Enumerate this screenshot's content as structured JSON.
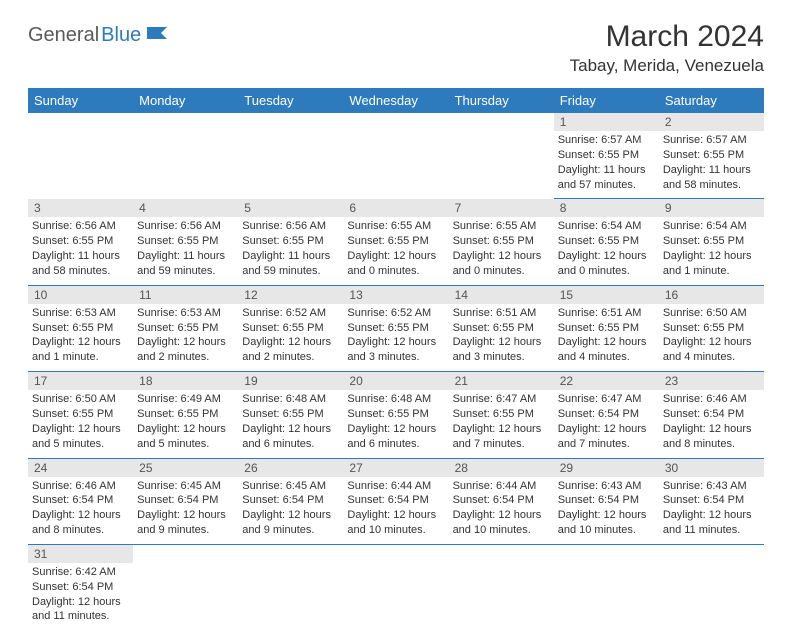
{
  "logo": {
    "part1": "General",
    "part2": "Blue",
    "icon_color": "#2d7bbd"
  },
  "title": "March 2024",
  "location": "Tabay, Merida, Venezuela",
  "colors": {
    "header_bg": "#2d7bbd",
    "header_text": "#ffffff",
    "daynum_bg": "#e7e7e7",
    "text": "#333333",
    "border": "#2d7bbd"
  },
  "day_names": [
    "Sunday",
    "Monday",
    "Tuesday",
    "Wednesday",
    "Thursday",
    "Friday",
    "Saturday"
  ],
  "weeks": [
    [
      {
        "day": "",
        "sunrise": "",
        "sunset": "",
        "daylight": ""
      },
      {
        "day": "",
        "sunrise": "",
        "sunset": "",
        "daylight": ""
      },
      {
        "day": "",
        "sunrise": "",
        "sunset": "",
        "daylight": ""
      },
      {
        "day": "",
        "sunrise": "",
        "sunset": "",
        "daylight": ""
      },
      {
        "day": "",
        "sunrise": "",
        "sunset": "",
        "daylight": ""
      },
      {
        "day": "1",
        "sunrise": "Sunrise: 6:57 AM",
        "sunset": "Sunset: 6:55 PM",
        "daylight": "Daylight: 11 hours and 57 minutes."
      },
      {
        "day": "2",
        "sunrise": "Sunrise: 6:57 AM",
        "sunset": "Sunset: 6:55 PM",
        "daylight": "Daylight: 11 hours and 58 minutes."
      }
    ],
    [
      {
        "day": "3",
        "sunrise": "Sunrise: 6:56 AM",
        "sunset": "Sunset: 6:55 PM",
        "daylight": "Daylight: 11 hours and 58 minutes."
      },
      {
        "day": "4",
        "sunrise": "Sunrise: 6:56 AM",
        "sunset": "Sunset: 6:55 PM",
        "daylight": "Daylight: 11 hours and 59 minutes."
      },
      {
        "day": "5",
        "sunrise": "Sunrise: 6:56 AM",
        "sunset": "Sunset: 6:55 PM",
        "daylight": "Daylight: 11 hours and 59 minutes."
      },
      {
        "day": "6",
        "sunrise": "Sunrise: 6:55 AM",
        "sunset": "Sunset: 6:55 PM",
        "daylight": "Daylight: 12 hours and 0 minutes."
      },
      {
        "day": "7",
        "sunrise": "Sunrise: 6:55 AM",
        "sunset": "Sunset: 6:55 PM",
        "daylight": "Daylight: 12 hours and 0 minutes."
      },
      {
        "day": "8",
        "sunrise": "Sunrise: 6:54 AM",
        "sunset": "Sunset: 6:55 PM",
        "daylight": "Daylight: 12 hours and 0 minutes."
      },
      {
        "day": "9",
        "sunrise": "Sunrise: 6:54 AM",
        "sunset": "Sunset: 6:55 PM",
        "daylight": "Daylight: 12 hours and 1 minute."
      }
    ],
    [
      {
        "day": "10",
        "sunrise": "Sunrise: 6:53 AM",
        "sunset": "Sunset: 6:55 PM",
        "daylight": "Daylight: 12 hours and 1 minute."
      },
      {
        "day": "11",
        "sunrise": "Sunrise: 6:53 AM",
        "sunset": "Sunset: 6:55 PM",
        "daylight": "Daylight: 12 hours and 2 minutes."
      },
      {
        "day": "12",
        "sunrise": "Sunrise: 6:52 AM",
        "sunset": "Sunset: 6:55 PM",
        "daylight": "Daylight: 12 hours and 2 minutes."
      },
      {
        "day": "13",
        "sunrise": "Sunrise: 6:52 AM",
        "sunset": "Sunset: 6:55 PM",
        "daylight": "Daylight: 12 hours and 3 minutes."
      },
      {
        "day": "14",
        "sunrise": "Sunrise: 6:51 AM",
        "sunset": "Sunset: 6:55 PM",
        "daylight": "Daylight: 12 hours and 3 minutes."
      },
      {
        "day": "15",
        "sunrise": "Sunrise: 6:51 AM",
        "sunset": "Sunset: 6:55 PM",
        "daylight": "Daylight: 12 hours and 4 minutes."
      },
      {
        "day": "16",
        "sunrise": "Sunrise: 6:50 AM",
        "sunset": "Sunset: 6:55 PM",
        "daylight": "Daylight: 12 hours and 4 minutes."
      }
    ],
    [
      {
        "day": "17",
        "sunrise": "Sunrise: 6:50 AM",
        "sunset": "Sunset: 6:55 PM",
        "daylight": "Daylight: 12 hours and 5 minutes."
      },
      {
        "day": "18",
        "sunrise": "Sunrise: 6:49 AM",
        "sunset": "Sunset: 6:55 PM",
        "daylight": "Daylight: 12 hours and 5 minutes."
      },
      {
        "day": "19",
        "sunrise": "Sunrise: 6:48 AM",
        "sunset": "Sunset: 6:55 PM",
        "daylight": "Daylight: 12 hours and 6 minutes."
      },
      {
        "day": "20",
        "sunrise": "Sunrise: 6:48 AM",
        "sunset": "Sunset: 6:55 PM",
        "daylight": "Daylight: 12 hours and 6 minutes."
      },
      {
        "day": "21",
        "sunrise": "Sunrise: 6:47 AM",
        "sunset": "Sunset: 6:55 PM",
        "daylight": "Daylight: 12 hours and 7 minutes."
      },
      {
        "day": "22",
        "sunrise": "Sunrise: 6:47 AM",
        "sunset": "Sunset: 6:54 PM",
        "daylight": "Daylight: 12 hours and 7 minutes."
      },
      {
        "day": "23",
        "sunrise": "Sunrise: 6:46 AM",
        "sunset": "Sunset: 6:54 PM",
        "daylight": "Daylight: 12 hours and 8 minutes."
      }
    ],
    [
      {
        "day": "24",
        "sunrise": "Sunrise: 6:46 AM",
        "sunset": "Sunset: 6:54 PM",
        "daylight": "Daylight: 12 hours and 8 minutes."
      },
      {
        "day": "25",
        "sunrise": "Sunrise: 6:45 AM",
        "sunset": "Sunset: 6:54 PM",
        "daylight": "Daylight: 12 hours and 9 minutes."
      },
      {
        "day": "26",
        "sunrise": "Sunrise: 6:45 AM",
        "sunset": "Sunset: 6:54 PM",
        "daylight": "Daylight: 12 hours and 9 minutes."
      },
      {
        "day": "27",
        "sunrise": "Sunrise: 6:44 AM",
        "sunset": "Sunset: 6:54 PM",
        "daylight": "Daylight: 12 hours and 10 minutes."
      },
      {
        "day": "28",
        "sunrise": "Sunrise: 6:44 AM",
        "sunset": "Sunset: 6:54 PM",
        "daylight": "Daylight: 12 hours and 10 minutes."
      },
      {
        "day": "29",
        "sunrise": "Sunrise: 6:43 AM",
        "sunset": "Sunset: 6:54 PM",
        "daylight": "Daylight: 12 hours and 10 minutes."
      },
      {
        "day": "30",
        "sunrise": "Sunrise: 6:43 AM",
        "sunset": "Sunset: 6:54 PM",
        "daylight": "Daylight: 12 hours and 11 minutes."
      }
    ],
    [
      {
        "day": "31",
        "sunrise": "Sunrise: 6:42 AM",
        "sunset": "Sunset: 6:54 PM",
        "daylight": "Daylight: 12 hours and 11 minutes."
      },
      {
        "day": "",
        "sunrise": "",
        "sunset": "",
        "daylight": ""
      },
      {
        "day": "",
        "sunrise": "",
        "sunset": "",
        "daylight": ""
      },
      {
        "day": "",
        "sunrise": "",
        "sunset": "",
        "daylight": ""
      },
      {
        "day": "",
        "sunrise": "",
        "sunset": "",
        "daylight": ""
      },
      {
        "day": "",
        "sunrise": "",
        "sunset": "",
        "daylight": ""
      },
      {
        "day": "",
        "sunrise": "",
        "sunset": "",
        "daylight": ""
      }
    ]
  ]
}
